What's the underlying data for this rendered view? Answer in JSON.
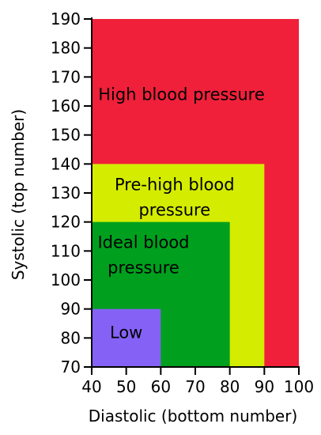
{
  "chart_data": {
    "type": "area",
    "xlabel": "Diastolic (bottom number)",
    "ylabel": "Systolic (top number)",
    "xlim": [
      40,
      100
    ],
    "ylim": [
      70,
      190
    ],
    "xticks": [
      40,
      50,
      60,
      70,
      80,
      90,
      100
    ],
    "yticks": [
      70,
      80,
      90,
      100,
      110,
      120,
      130,
      140,
      150,
      160,
      170,
      180,
      190
    ],
    "grid": false,
    "regions": [
      {
        "label": [
          "High blood pressure"
        ],
        "x_max": 100,
        "y_max": 190,
        "color": "#f0203a",
        "label_at": [
          66,
          162
        ]
      },
      {
        "label": [
          "Pre-high blood",
          "pressure"
        ],
        "x_max": 90,
        "y_max": 140,
        "color": "#d4ec00",
        "label_at": [
          64,
          131
        ]
      },
      {
        "label": [
          "Ideal blood",
          "pressure"
        ],
        "x_max": 80,
        "y_max": 120,
        "color": "#00a01e",
        "label_at": [
          55,
          111
        ]
      },
      {
        "label": [
          "Low"
        ],
        "x_max": 60,
        "y_max": 90,
        "color": "#8562f5",
        "label_at": [
          50,
          80
        ]
      }
    ]
  }
}
